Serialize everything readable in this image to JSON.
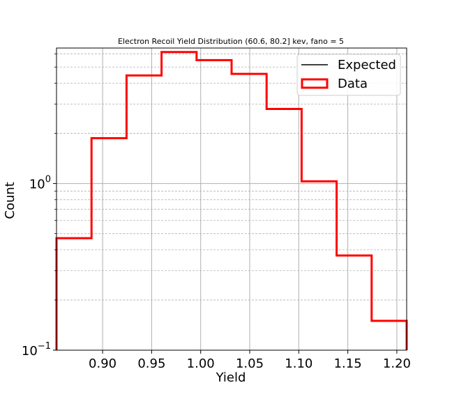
{
  "chart_data": {
    "type": "histogram",
    "title": "Electron Recoil Yield Distribution (60.6, 80.2] kev, fano = 5",
    "xlabel": "Yield",
    "ylabel": "Count",
    "yscale": "log",
    "xlim": [
      0.853,
      1.21
    ],
    "ylim": [
      0.1,
      6.5
    ],
    "x_ticks": [
      0.9,
      0.95,
      1.0,
      1.05,
      1.1,
      1.15,
      1.2
    ],
    "x_tick_labels": [
      "0.90",
      "0.95",
      "1.00",
      "1.05",
      "1.10",
      "1.15",
      "1.20"
    ],
    "y_tick_labels": [
      {
        "value": 0.1,
        "base": "10",
        "exp": "−1"
      },
      {
        "value": 1,
        "base": "10",
        "exp": "0"
      }
    ],
    "grid": true,
    "legend_position": "top-right",
    "series": [
      {
        "name": "Expected",
        "style": "line",
        "color": "#000000",
        "values": []
      },
      {
        "name": "Data",
        "style": "step",
        "color": "#ff0000",
        "bin_edges": [
          0.853,
          0.8887,
          0.9244,
          0.9601,
          0.9958,
          1.0315,
          1.0672,
          1.1029,
          1.1386,
          1.1743,
          1.21
        ],
        "values": [
          0.47,
          1.87,
          4.45,
          6.15,
          5.5,
          4.55,
          2.8,
          1.03,
          0.37,
          0.15
        ]
      }
    ]
  }
}
